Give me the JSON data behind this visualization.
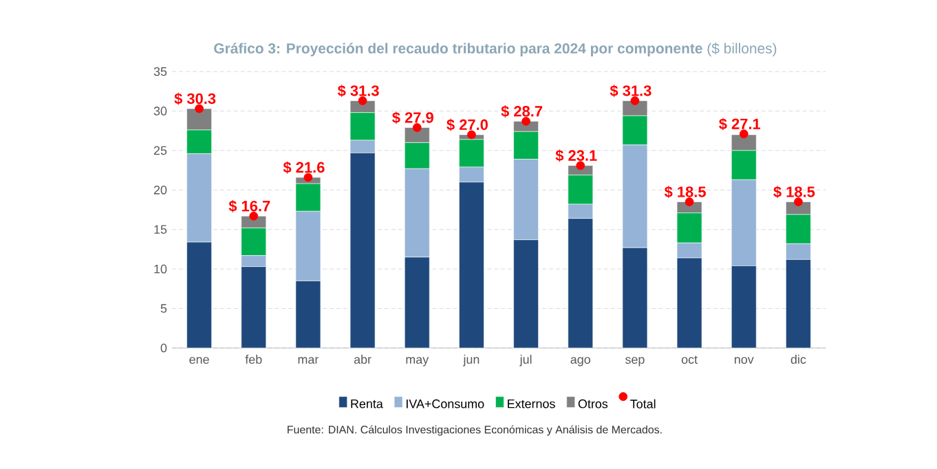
{
  "chart_data": {
    "type": "bar",
    "title": "**Gráfico 3: Proyección del recaudo tributario para 2024 por componente** ($ billones)",
    "categories": [
      "ene",
      "feb",
      "mar",
      "abr",
      "may",
      "jun",
      "jul",
      "ago",
      "sep",
      "oct",
      "nov",
      "dic"
    ],
    "stacked": true,
    "ylim": [
      0,
      35
    ],
    "yticks": [
      0,
      5,
      10,
      15,
      20,
      25,
      30,
      35
    ],
    "grid": "y",
    "legend": "bottom",
    "marker": "circle",
    "series": [
      {
        "name": "Renta",
        "color": "#1f497d",
        "values": [
          13.4,
          10.3,
          8.5,
          24.7,
          11.5,
          21.0,
          13.7,
          16.4,
          12.7,
          11.4,
          10.4,
          11.2
        ]
      },
      {
        "name": "IVA+Consumo",
        "color": "#95b3d7",
        "values": [
          11.2,
          1.4,
          8.8,
          1.6,
          11.2,
          1.9,
          10.2,
          1.8,
          13.0,
          1.9,
          10.9,
          2.0
        ]
      },
      {
        "name": "Externos",
        "color": "#00b050",
        "values": [
          3.0,
          3.5,
          3.5,
          3.5,
          3.3,
          3.5,
          3.5,
          3.7,
          3.7,
          3.8,
          3.7,
          3.7
        ]
      },
      {
        "name": "Otros",
        "color": "#808080",
        "values": [
          2.7,
          1.5,
          0.8,
          1.5,
          1.9,
          0.6,
          1.3,
          1.2,
          1.9,
          1.4,
          2.0,
          1.6
        ]
      },
      {
        "name": "Total",
        "type": "scatter",
        "color": "#ff0000",
        "values": [
          30.3,
          16.7,
          21.6,
          31.3,
          27.9,
          27.0,
          28.7,
          23.1,
          31.3,
          18.5,
          27.1,
          18.5
        ],
        "value_labels": [
          "$ 30.3",
          "$ 16.7",
          "$ 21.6",
          "$ 31.3",
          "$ 27.9",
          "$ 27.0",
          "$ 28.7",
          "$ 23.1",
          "$ 31.3",
          "$ 18.5",
          "$ 27.1",
          "$ 18.5"
        ]
      }
    ],
    "annotations": [
      "Fuente: DIAN. Cálculos Investigaciones Económicas y Análisis de Mercados."
    ]
  }
}
